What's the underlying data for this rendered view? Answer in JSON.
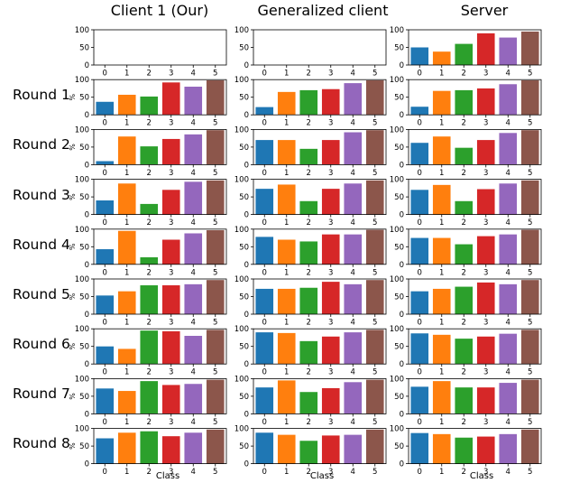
{
  "chart_data": {
    "type": "bar",
    "columns": [
      "Client 1 (Our)",
      "Generalized client",
      "Server"
    ],
    "rows": [
      "",
      "Round 1",
      "Round 2",
      "Round 3",
      "Round 4",
      "Round 5",
      "Round 6",
      "Round 7",
      "Round 8"
    ],
    "categories": [
      "0",
      "1",
      "2",
      "3",
      "4",
      "5"
    ],
    "ylabel": "%",
    "xlabel": "Class",
    "ylim": [
      0,
      100
    ],
    "yticks": [
      0,
      50,
      100
    ],
    "colors": [
      "#1f77b4",
      "#ff7f0e",
      "#2ca02c",
      "#d62728",
      "#9467bd",
      "#8c564b"
    ],
    "panels": [
      [
        {
          "values": [
            0,
            0,
            0,
            0,
            0,
            0
          ],
          "show_ylabel": false
        },
        {
          "values": [
            0,
            0,
            0,
            0,
            0,
            0
          ],
          "show_ylabel": false
        },
        {
          "values": [
            50,
            38,
            60,
            90,
            78,
            95
          ],
          "show_ylabel": false
        }
      ],
      [
        {
          "values": [
            37,
            57,
            52,
            92,
            80,
            98
          ],
          "show_ylabel": true
        },
        {
          "values": [
            22,
            65,
            70,
            73,
            90,
            98
          ],
          "show_ylabel": false
        },
        {
          "values": [
            23,
            68,
            70,
            75,
            87,
            98
          ],
          "show_ylabel": false
        }
      ],
      [
        {
          "values": [
            10,
            80,
            52,
            73,
            86,
            98
          ],
          "show_ylabel": true
        },
        {
          "values": [
            70,
            70,
            45,
            70,
            92,
            98
          ],
          "show_ylabel": false
        },
        {
          "values": [
            62,
            80,
            48,
            70,
            90,
            98
          ],
          "show_ylabel": false
        }
      ],
      [
        {
          "values": [
            40,
            88,
            30,
            70,
            93,
            97
          ],
          "show_ylabel": true
        },
        {
          "values": [
            73,
            85,
            38,
            73,
            88,
            97
          ],
          "show_ylabel": false
        },
        {
          "values": [
            70,
            84,
            38,
            72,
            88,
            97
          ],
          "show_ylabel": false
        }
      ],
      [
        {
          "values": [
            43,
            95,
            20,
            70,
            88,
            97
          ],
          "show_ylabel": true
        },
        {
          "values": [
            78,
            70,
            65,
            85,
            85,
            98
          ],
          "show_ylabel": false
        },
        {
          "values": [
            75,
            75,
            57,
            80,
            85,
            98
          ],
          "show_ylabel": false
        }
      ],
      [
        {
          "values": [
            53,
            65,
            82,
            82,
            85,
            97
          ],
          "show_ylabel": true
        },
        {
          "values": [
            72,
            72,
            75,
            92,
            85,
            97
          ],
          "show_ylabel": false
        },
        {
          "values": [
            65,
            72,
            78,
            90,
            85,
            97
          ],
          "show_ylabel": false
        }
      ],
      [
        {
          "values": [
            50,
            43,
            95,
            93,
            80,
            97
          ],
          "show_ylabel": true
        },
        {
          "values": [
            90,
            88,
            65,
            78,
            90,
            97
          ],
          "show_ylabel": false
        },
        {
          "values": [
            87,
            83,
            72,
            78,
            86,
            97
          ],
          "show_ylabel": false
        }
      ],
      [
        {
          "values": [
            72,
            65,
            93,
            82,
            85,
            97
          ],
          "show_ylabel": true
        },
        {
          "values": [
            75,
            95,
            62,
            73,
            90,
            97
          ],
          "show_ylabel": false
        },
        {
          "values": [
            77,
            93,
            75,
            75,
            88,
            97
          ],
          "show_ylabel": false
        }
      ],
      [
        {
          "values": [
            72,
            88,
            92,
            78,
            88,
            97
          ],
          "show_ylabel": true
        },
        {
          "values": [
            88,
            82,
            65,
            80,
            82,
            97
          ],
          "show_ylabel": false
        },
        {
          "values": [
            87,
            84,
            74,
            77,
            84,
            97
          ],
          "show_ylabel": false
        }
      ]
    ]
  }
}
